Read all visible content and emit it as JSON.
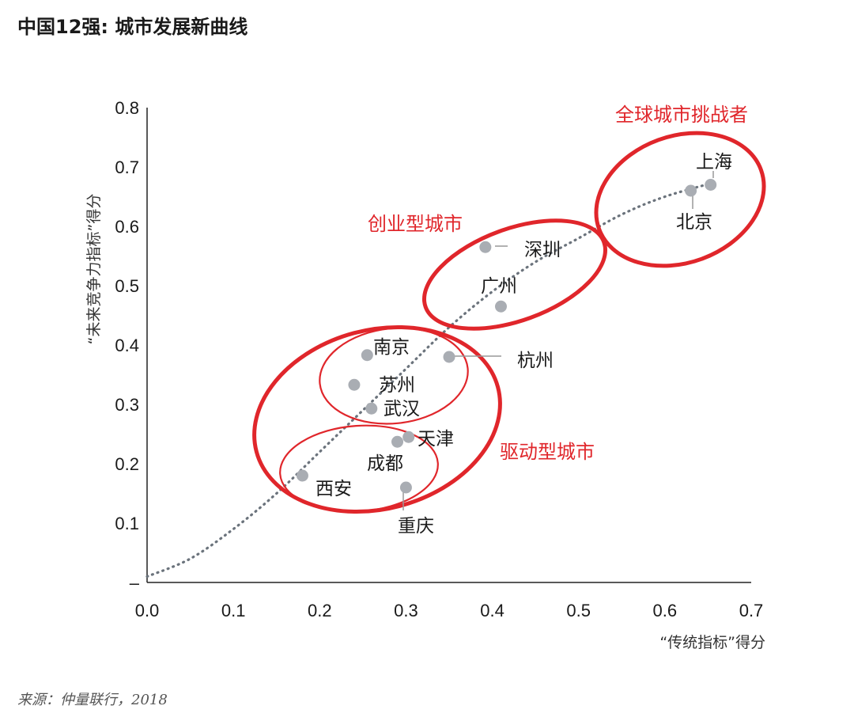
{
  "title": "中国12强: 城市发展新曲线",
  "source": "来源：仲量联行，2018",
  "chart_data": {
    "type": "scatter",
    "xlabel": "“传统指标”得分",
    "ylabel": "“未来竞争力指标”得分",
    "xlim": [
      0,
      0.7
    ],
    "ylim": [
      0,
      0.8
    ],
    "x_ticks": [
      "0.0",
      "0.1",
      "0.2",
      "0.3",
      "0.4",
      "0.5",
      "0.6",
      "0.7"
    ],
    "y_ticks": [
      "–",
      "0.1",
      "0.2",
      "0.3",
      "0.4",
      "0.5",
      "0.6",
      "0.7",
      "0.8"
    ],
    "points": [
      {
        "name": "上海",
        "x": 0.653,
        "y": 0.67
      },
      {
        "name": "北京",
        "x": 0.63,
        "y": 0.66
      },
      {
        "name": "深圳",
        "x": 0.392,
        "y": 0.565
      },
      {
        "name": "广州",
        "x": 0.41,
        "y": 0.465
      },
      {
        "name": "杭州",
        "x": 0.35,
        "y": 0.38
      },
      {
        "name": "南京",
        "x": 0.255,
        "y": 0.383
      },
      {
        "name": "苏州",
        "x": 0.24,
        "y": 0.333
      },
      {
        "name": "武汉",
        "x": 0.26,
        "y": 0.293
      },
      {
        "name": "天津",
        "x": 0.303,
        "y": 0.245
      },
      {
        "name": "成都",
        "x": 0.29,
        "y": 0.237
      },
      {
        "name": "西安",
        "x": 0.18,
        "y": 0.18
      },
      {
        "name": "重庆",
        "x": 0.3,
        "y": 0.16
      }
    ],
    "trend": [
      [
        0,
        0.01
      ],
      [
        0.05,
        0.04
      ],
      [
        0.1,
        0.09
      ],
      [
        0.15,
        0.15
      ],
      [
        0.2,
        0.22
      ],
      [
        0.25,
        0.29
      ],
      [
        0.3,
        0.36
      ],
      [
        0.35,
        0.43
      ],
      [
        0.4,
        0.49
      ],
      [
        0.45,
        0.54
      ],
      [
        0.5,
        0.58
      ],
      [
        0.55,
        0.62
      ],
      [
        0.6,
        0.65
      ],
      [
        0.66,
        0.675
      ]
    ],
    "groups": [
      {
        "label": "全球城市挑战者"
      },
      {
        "label": "创业型城市"
      },
      {
        "label": "驱动型城市"
      }
    ],
    "point_color": "#a9adb3",
    "accent_color": "#e0262b",
    "trend_color": "#6b737c"
  }
}
